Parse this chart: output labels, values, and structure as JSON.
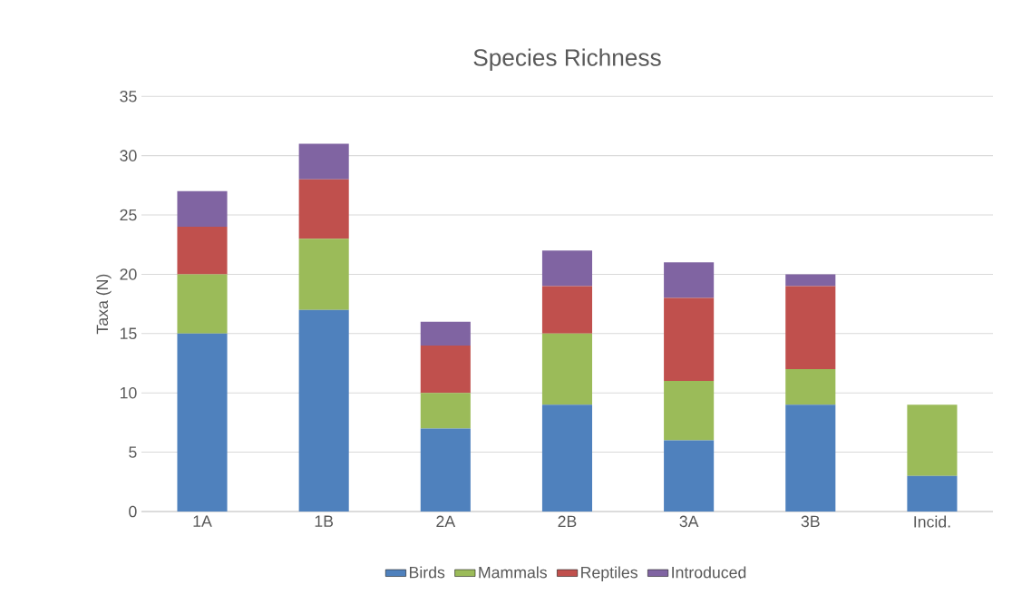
{
  "chart_data": {
    "type": "bar",
    "stacked": true,
    "title": "Species Richness",
    "ylabel": "Taxa (N)",
    "categories": [
      "1A",
      "1B",
      "2A",
      "2B",
      "3A",
      "3B",
      "Incid."
    ],
    "series": [
      {
        "name": "Birds",
        "color": "#4f81bd",
        "values": [
          15,
          17,
          7,
          9,
          6,
          9,
          3
        ]
      },
      {
        "name": "Mammals",
        "color": "#9bbb59",
        "values": [
          5,
          6,
          3,
          6,
          5,
          3,
          6
        ]
      },
      {
        "name": "Reptiles",
        "color": "#c0504d",
        "values": [
          4,
          5,
          4,
          4,
          7,
          7,
          0
        ]
      },
      {
        "name": "Introduced",
        "color": "#8064a2",
        "values": [
          3,
          3,
          2,
          3,
          3,
          1,
          0
        ]
      }
    ],
    "ylim": [
      0,
      35
    ],
    "yticks": [
      0,
      5,
      10,
      15,
      20,
      25,
      30,
      35
    ],
    "grid": "y",
    "legend": "bottom"
  }
}
